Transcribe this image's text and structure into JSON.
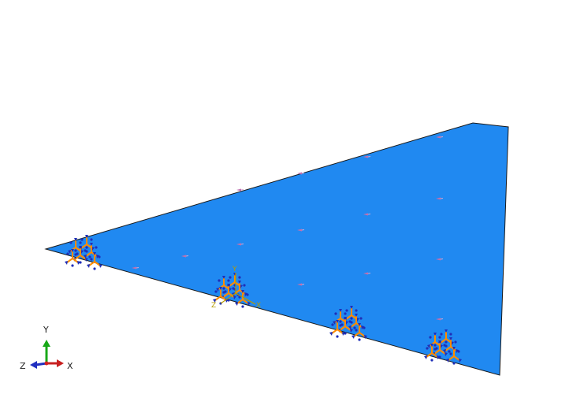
{
  "viewport": {
    "background": "#ffffff",
    "part_color": "#2089f1",
    "part_edge_color": "#1a1a1a",
    "load_marker_color": "#c070b0",
    "bc_arrow_color": "#ff8c00",
    "bc_symbol_color": "#1f2fb8"
  },
  "triad": {
    "y_label": "Y",
    "x_label": "X",
    "z_label": "Z",
    "y_color": "#18a818",
    "x_color": "#c82020",
    "z_color": "#2030c0"
  },
  "local_csys": {
    "y_label": "Y",
    "z_label": "Z",
    "x_label": "X",
    "color": "#b59a00"
  }
}
